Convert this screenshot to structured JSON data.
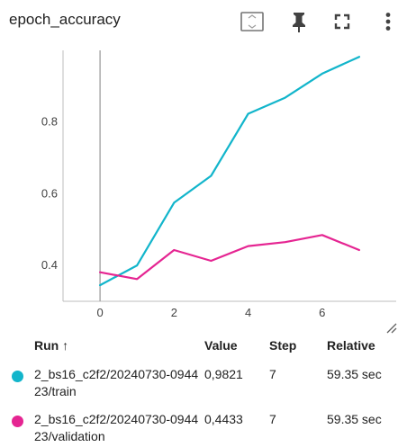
{
  "header": {
    "title": "epoch_accuracy"
  },
  "chart_data": {
    "type": "line",
    "title": "",
    "xlabel": "",
    "ylabel": "",
    "xlim": [
      -1,
      8
    ],
    "ylim": [
      0.3,
      1.0
    ],
    "x_ticks": [
      "0",
      "2",
      "4",
      "6"
    ],
    "y_ticks": [
      "0.4",
      "0.6",
      "0.8"
    ],
    "grid": false,
    "series": [
      {
        "name": "2_bs16_c2f2/20240730-094423/train",
        "color": "#12b5cb",
        "x": [
          0,
          1,
          2,
          3,
          4,
          5,
          6,
          7
        ],
        "y": [
          0.345,
          0.4,
          0.575,
          0.65,
          0.823,
          0.868,
          0.935,
          0.982
        ]
      },
      {
        "name": "2_bs16_c2f2/20240730-094423/validation",
        "color": "#e52592",
        "x": [
          0,
          1,
          2,
          3,
          4,
          5,
          6,
          7
        ],
        "y": [
          0.381,
          0.362,
          0.443,
          0.413,
          0.454,
          0.465,
          0.485,
          0.443
        ]
      }
    ]
  },
  "table": {
    "headers": {
      "run": "Run ↑",
      "value": "Value",
      "step": "Step",
      "relative": "Relative"
    },
    "rows": [
      {
        "run": "2_bs16_c2f2/20240730-094423/train",
        "value": "0,9821",
        "step": "7",
        "relative": "59.35 sec",
        "color": "#12b5cb"
      },
      {
        "run": "2_bs16_c2f2/20240730-094423/validation",
        "value": "0,4433",
        "step": "7",
        "relative": "59.35 sec",
        "color": "#e52592"
      }
    ]
  },
  "icons": [
    "fit-domain-icon",
    "pin-icon",
    "fullscreen-icon",
    "more-vert-icon",
    "resize-handle-icon"
  ]
}
